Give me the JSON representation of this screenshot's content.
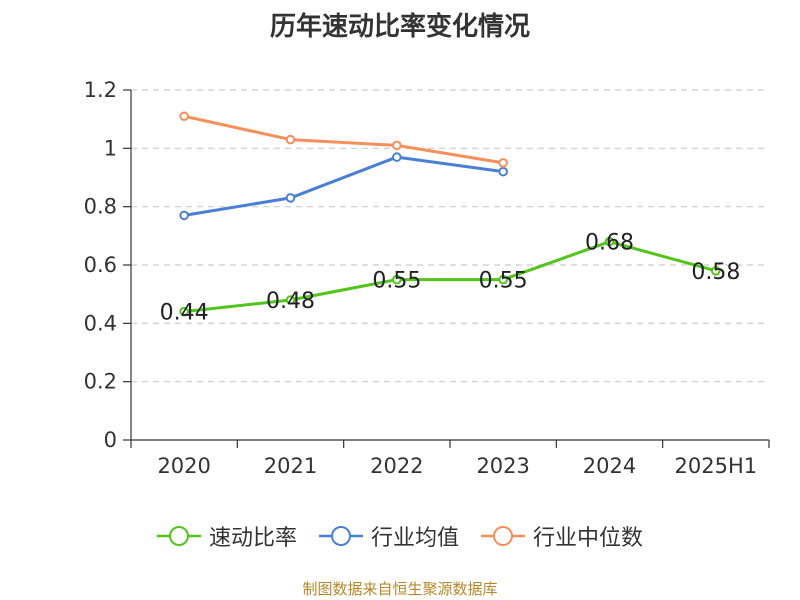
{
  "chart_data": {
    "type": "line",
    "title": "历年速动比率变化情况",
    "categories": [
      "2020",
      "2021",
      "2022",
      "2023",
      "2024",
      "2025H1"
    ],
    "ylim": [
      0,
      1.2
    ],
    "yticks": [
      "0",
      "0.2",
      "0.4",
      "0.6",
      "0.8",
      "1",
      "1.2"
    ],
    "grid": true,
    "legend_position": "bottom",
    "series": [
      {
        "name": "速动比率",
        "color": "#52c41a",
        "values": [
          0.44,
          0.48,
          0.55,
          0.55,
          0.68,
          0.58
        ],
        "data_labels": [
          "0.44",
          "0.48",
          "0.55",
          "0.55",
          "0.68",
          "0.58"
        ]
      },
      {
        "name": "行业均值",
        "color": "#4a7fd6",
        "values": [
          0.77,
          0.83,
          0.97,
          0.92,
          null,
          null
        ]
      },
      {
        "name": "行业中位数",
        "color": "#f5905a",
        "values": [
          1.11,
          1.03,
          1.01,
          0.95,
          null,
          null
        ]
      }
    ]
  },
  "footer": {
    "source": "制图数据来自恒生聚源数据库"
  }
}
